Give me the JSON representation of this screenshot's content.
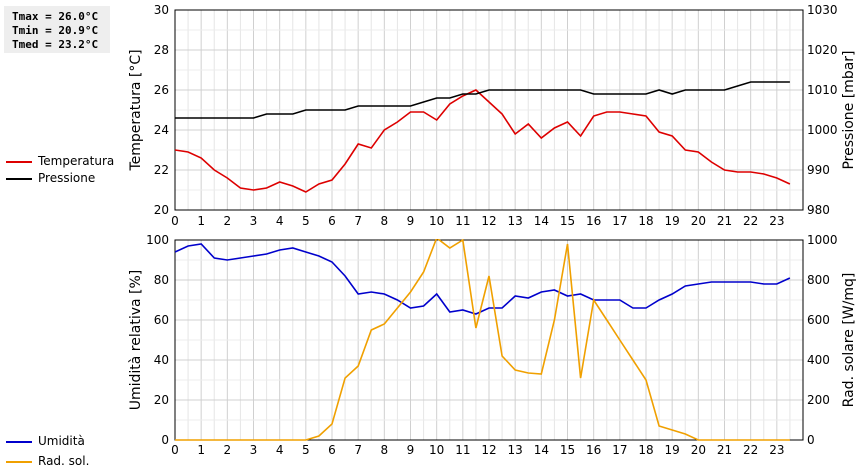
{
  "stats": {
    "tmax": "Tmax = 26.0°C",
    "tmin": "Tmin = 20.9°C",
    "tmed": "Tmed = 23.2°C"
  },
  "legend_top": [
    {
      "label": "Temperatura",
      "color": "#dd0000"
    },
    {
      "label": "Pressione",
      "color": "#000000"
    }
  ],
  "legend_bottom": [
    {
      "label": "Umidità",
      "color": "#0000cc"
    },
    {
      "label": "Rad. sol.",
      "color": "#f0a000"
    }
  ],
  "chart_data": [
    {
      "type": "line",
      "xlim": [
        0,
        24
      ],
      "xticks": [
        "0",
        "1",
        "2",
        "3",
        "4",
        "5",
        "6",
        "7",
        "8",
        "9",
        "10",
        "11",
        "12",
        "13",
        "14",
        "15",
        "16",
        "17",
        "18",
        "19",
        "20",
        "21",
        "22",
        "23"
      ],
      "y_left": {
        "label": "Temperatura [°C]",
        "lim": [
          20,
          30
        ],
        "ticks": [
          "20",
          "22",
          "24",
          "26",
          "28",
          "30"
        ]
      },
      "y_right": {
        "label": "Pressione [mbar]",
        "lim": [
          980,
          1030
        ],
        "ticks": [
          "980",
          "990",
          "1000",
          "1010",
          "1020",
          "1030"
        ]
      },
      "grid": true,
      "series": [
        {
          "name": "Temperatura",
          "axis": "left",
          "color": "#dd0000",
          "x": [
            0,
            0.5,
            1,
            1.5,
            2,
            2.5,
            3,
            3.5,
            4,
            4.5,
            5,
            5.5,
            6,
            6.5,
            7,
            7.5,
            8,
            8.5,
            9,
            9.5,
            10,
            10.5,
            11,
            11.5,
            12,
            12.5,
            13,
            13.5,
            14,
            14.5,
            15,
            15.5,
            16,
            16.5,
            17,
            17.5,
            18,
            18.5,
            19,
            19.5,
            20,
            20.5,
            21,
            21.5,
            22,
            22.5,
            23,
            23.5
          ],
          "y": [
            23.0,
            22.9,
            22.6,
            22.0,
            21.6,
            21.1,
            21.0,
            21.1,
            21.4,
            21.2,
            20.9,
            21.3,
            21.5,
            22.3,
            23.3,
            23.1,
            24.0,
            24.4,
            24.9,
            24.9,
            24.5,
            25.3,
            25.7,
            26.0,
            25.4,
            24.8,
            23.8,
            24.3,
            23.6,
            24.1,
            24.4,
            23.7,
            24.7,
            24.9,
            24.9,
            24.8,
            24.7,
            23.9,
            23.7,
            23.0,
            22.9,
            22.4,
            22.0,
            21.9,
            21.9,
            21.8,
            21.6,
            21.3
          ]
        },
        {
          "name": "Pressione",
          "axis": "right",
          "color": "#000000",
          "x": [
            0,
            0.5,
            1,
            1.5,
            2,
            2.5,
            3,
            3.5,
            4,
            4.5,
            5,
            5.5,
            6,
            6.5,
            7,
            7.5,
            8,
            8.5,
            9,
            9.5,
            10,
            10.5,
            11,
            11.5,
            12,
            12.5,
            13,
            13.5,
            14,
            14.5,
            15,
            15.5,
            16,
            16.5,
            17,
            17.5,
            18,
            18.5,
            19,
            19.5,
            20,
            20.5,
            21,
            21.5,
            22,
            22.5,
            23,
            23.5
          ],
          "y": [
            1003,
            1003,
            1003,
            1003,
            1003,
            1003,
            1003,
            1004,
            1004,
            1004,
            1005,
            1005,
            1005,
            1005,
            1006,
            1006,
            1006,
            1006,
            1006,
            1007,
            1008,
            1008,
            1009,
            1009,
            1010,
            1010,
            1010,
            1010,
            1010,
            1010,
            1010,
            1010,
            1009,
            1009,
            1009,
            1009,
            1009,
            1010,
            1009,
            1010,
            1010,
            1010,
            1010,
            1011,
            1012,
            1012,
            1012,
            1012
          ]
        }
      ]
    },
    {
      "type": "line",
      "xlim": [
        0,
        24
      ],
      "xticks": [
        "0",
        "1",
        "2",
        "3",
        "4",
        "5",
        "6",
        "7",
        "8",
        "9",
        "10",
        "11",
        "12",
        "13",
        "14",
        "15",
        "16",
        "17",
        "18",
        "19",
        "20",
        "21",
        "22",
        "23"
      ],
      "y_left": {
        "label": "Umidità relativa [%]",
        "lim": [
          0,
          100
        ],
        "ticks": [
          "0",
          "20",
          "40",
          "60",
          "80",
          "100"
        ]
      },
      "y_right": {
        "label": "Rad. solare [W/mq]",
        "lim": [
          0,
          1000
        ],
        "ticks": [
          "0",
          "200",
          "400",
          "600",
          "800",
          "1000"
        ]
      },
      "grid": true,
      "series": [
        {
          "name": "Umidità",
          "axis": "left",
          "color": "#0000cc",
          "x": [
            0,
            0.5,
            1,
            1.5,
            2,
            2.5,
            3,
            3.5,
            4,
            4.5,
            5,
            5.5,
            6,
            6.5,
            7,
            7.5,
            8,
            8.5,
            9,
            9.5,
            10,
            10.5,
            11,
            11.5,
            12,
            12.5,
            13,
            13.5,
            14,
            14.5,
            15,
            15.5,
            16,
            16.5,
            17,
            17.5,
            18,
            18.5,
            19,
            19.5,
            20,
            20.5,
            21,
            21.5,
            22,
            22.5,
            23,
            23.5
          ],
          "y": [
            94,
            97,
            98,
            91,
            90,
            91,
            92,
            93,
            95,
            96,
            94,
            92,
            89,
            82,
            73,
            74,
            73,
            70,
            66,
            67,
            73,
            64,
            65,
            63,
            66,
            66,
            72,
            71,
            74,
            75,
            72,
            73,
            70,
            70,
            70,
            66,
            66,
            70,
            73,
            77,
            78,
            79,
            79,
            79,
            79,
            78,
            78,
            81
          ]
        },
        {
          "name": "Rad. sol.",
          "axis": "right",
          "color": "#f0a000",
          "x": [
            0,
            0.5,
            1,
            1.5,
            2,
            2.5,
            3,
            3.5,
            4,
            4.5,
            5,
            5.5,
            6,
            6.5,
            7,
            7.5,
            8,
            8.5,
            9,
            9.5,
            10,
            10.5,
            11,
            11.5,
            12,
            12.5,
            13,
            13.5,
            14,
            14.5,
            15,
            15.5,
            16,
            16.5,
            17,
            17.5,
            18,
            18.5,
            19,
            19.5,
            20,
            20.5,
            21,
            21.5,
            22,
            22.5,
            23,
            23.5
          ],
          "y": [
            0,
            0,
            0,
            0,
            0,
            0,
            0,
            0,
            0,
            0,
            0,
            20,
            80,
            310,
            370,
            550,
            580,
            660,
            740,
            840,
            1010,
            960,
            1000,
            560,
            820,
            420,
            350,
            335,
            330,
            600,
            980,
            310,
            700,
            600,
            500,
            400,
            300,
            70,
            50,
            30,
            0,
            0,
            0,
            0,
            0,
            0,
            0,
            0
          ]
        }
      ]
    }
  ]
}
